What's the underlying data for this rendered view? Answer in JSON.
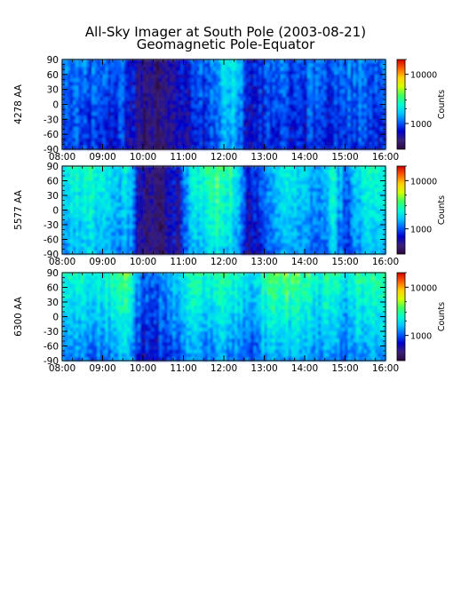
{
  "chart_data": {
    "type": "heatmap",
    "title": "All-Sky Imager at South Pole (2003-08-21)",
    "subtitle": "Geomagnetic Pole-Equator",
    "xlim": [
      "08:00",
      "16:00"
    ],
    "x_ticks": [
      "08:00",
      "09:00",
      "10:00",
      "11:00",
      "12:00",
      "13:00",
      "14:00",
      "15:00",
      "16:00"
    ],
    "ylim": [
      -90,
      90
    ],
    "y_ticks": [
      "-90",
      "-60",
      "-30",
      "0",
      "30",
      "60",
      "90"
    ],
    "colorbar": {
      "label": "Counts",
      "scale": "log",
      "range": [
        300,
        20000
      ],
      "tick_labels": [
        "1000",
        "10000"
      ],
      "tick_values": [
        1000,
        10000
      ]
    },
    "panels": [
      {
        "ylabel": "4278 AA",
        "intensity_profile": {
          "hours": [
            8.0,
            8.5,
            9.0,
            9.3,
            9.5,
            9.8,
            10.0,
            10.5,
            10.9,
            11.3,
            11.7,
            12.0,
            12.2,
            12.4,
            12.6,
            13.0,
            13.3,
            13.7,
            14.0,
            14.3,
            14.7,
            15.0,
            15.3,
            15.6,
            16.0
          ],
          "level": [
            0.32,
            0.3,
            0.26,
            0.3,
            0.28,
            0.2,
            0.1,
            0.1,
            0.16,
            0.26,
            0.3,
            0.4,
            0.48,
            0.36,
            0.18,
            0.26,
            0.3,
            0.26,
            0.28,
            0.3,
            0.28,
            0.3,
            0.32,
            0.3,
            0.32
          ]
        }
      },
      {
        "ylabel": "5577 AA",
        "intensity_profile": {
          "hours": [
            8.0,
            8.3,
            8.6,
            9.0,
            9.3,
            9.6,
            9.8,
            10.0,
            10.5,
            10.9,
            11.2,
            11.6,
            12.0,
            12.3,
            12.6,
            13.0,
            13.3,
            13.7,
            14.0,
            14.4,
            14.7,
            15.0,
            15.3,
            15.6,
            16.0
          ],
          "level": [
            0.44,
            0.48,
            0.52,
            0.44,
            0.4,
            0.44,
            0.28,
            0.12,
            0.12,
            0.22,
            0.46,
            0.54,
            0.58,
            0.46,
            0.2,
            0.3,
            0.46,
            0.42,
            0.4,
            0.36,
            0.48,
            0.3,
            0.44,
            0.52,
            0.48
          ]
        }
      },
      {
        "ylabel": "6300 AA",
        "intensity_profile": {
          "hours": [
            8.0,
            8.5,
            9.0,
            9.3,
            9.6,
            9.8,
            10.0,
            10.5,
            10.9,
            11.2,
            11.6,
            12.0,
            12.3,
            12.6,
            13.0,
            13.3,
            13.6,
            14.0,
            14.4,
            14.7,
            15.0,
            15.3,
            15.6,
            16.0
          ],
          "level": [
            0.52,
            0.54,
            0.55,
            0.58,
            0.66,
            0.46,
            0.36,
            0.36,
            0.46,
            0.56,
            0.58,
            0.6,
            0.56,
            0.46,
            0.6,
            0.7,
            0.64,
            0.62,
            0.56,
            0.6,
            0.52,
            0.6,
            0.62,
            0.58
          ]
        }
      }
    ],
    "colors": {
      "colormap": [
        "#2b0a3d",
        "#3a1f7a",
        "#0000c8",
        "#0060ff",
        "#00c8ff",
        "#00ffd0",
        "#40ff60",
        "#d4ff00",
        "#ffd000",
        "#ff6000",
        "#d00000"
      ]
    }
  }
}
